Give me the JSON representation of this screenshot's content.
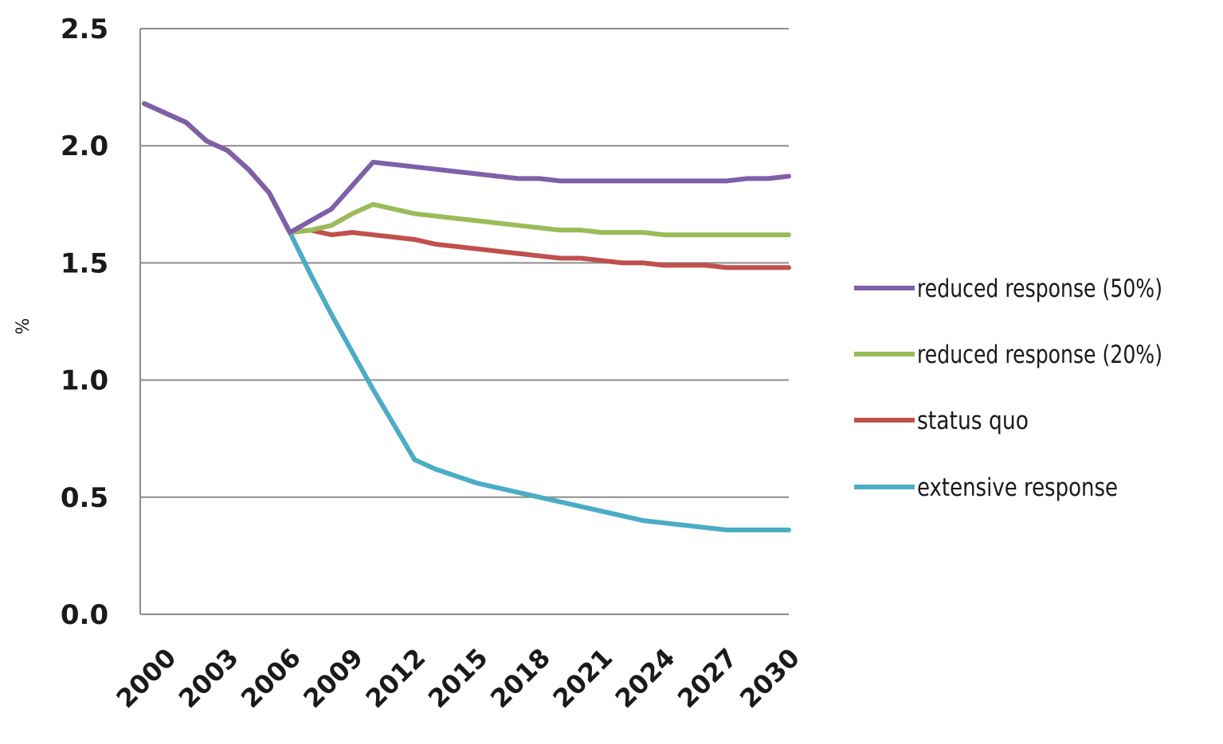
{
  "chart_data": {
    "type": "line",
    "title": "",
    "xlabel": "",
    "ylabel": "%",
    "ylim": [
      0,
      2.5
    ],
    "y_ticks": [
      "0.0",
      "0.5",
      "1.0",
      "1.5",
      "2.0",
      "2.5"
    ],
    "x_ticks": [
      "2000",
      "2003",
      "2006",
      "2009",
      "2012",
      "2015",
      "2018",
      "2021",
      "2024",
      "2027",
      "2030"
    ],
    "x": [
      2000,
      2001,
      2002,
      2003,
      2004,
      2005,
      2006,
      2007,
      2008,
      2009,
      2010,
      2011,
      2012,
      2013,
      2014,
      2015,
      2016,
      2017,
      2018,
      2019,
      2020,
      2021,
      2022,
      2023,
      2024,
      2025,
      2026,
      2027,
      2028,
      2029,
      2030,
      2031
    ],
    "grid": "horizontal",
    "legend_position": "right",
    "series": [
      {
        "name": "reduced response (50%)",
        "color": "#7f5fa8",
        "values": [
          2.18,
          2.14,
          2.1,
          2.02,
          1.98,
          1.9,
          1.8,
          1.63,
          1.68,
          1.73,
          1.83,
          1.93,
          1.92,
          1.91,
          1.9,
          1.89,
          1.88,
          1.87,
          1.86,
          1.86,
          1.85,
          1.85,
          1.85,
          1.85,
          1.85,
          1.85,
          1.85,
          1.85,
          1.85,
          1.86,
          1.86,
          1.87
        ]
      },
      {
        "name": "reduced response (20%)",
        "color": "#9bbb59",
        "values": [
          2.18,
          2.14,
          2.1,
          2.02,
          1.98,
          1.9,
          1.8,
          1.63,
          1.64,
          1.66,
          1.71,
          1.75,
          1.73,
          1.71,
          1.7,
          1.69,
          1.68,
          1.67,
          1.66,
          1.65,
          1.64,
          1.64,
          1.63,
          1.63,
          1.63,
          1.62,
          1.62,
          1.62,
          1.62,
          1.62,
          1.62,
          1.62
        ]
      },
      {
        "name": "status quo",
        "color": "#c0504d",
        "values": [
          2.18,
          2.14,
          2.1,
          2.02,
          1.98,
          1.9,
          1.8,
          1.63,
          1.64,
          1.62,
          1.63,
          1.62,
          1.61,
          1.6,
          1.58,
          1.57,
          1.56,
          1.55,
          1.54,
          1.53,
          1.52,
          1.52,
          1.51,
          1.5,
          1.5,
          1.49,
          1.49,
          1.49,
          1.48,
          1.48,
          1.48,
          1.48
        ]
      },
      {
        "name": "extensive response",
        "color": "#4bacc6",
        "values": [
          2.18,
          2.14,
          2.1,
          2.02,
          1.98,
          1.9,
          1.8,
          1.63,
          1.45,
          1.28,
          1.12,
          0.96,
          0.81,
          0.66,
          0.62,
          0.59,
          0.56,
          0.54,
          0.52,
          0.5,
          0.48,
          0.46,
          0.44,
          0.42,
          0.4,
          0.39,
          0.38,
          0.37,
          0.36,
          0.36,
          0.36,
          0.36
        ]
      }
    ]
  }
}
